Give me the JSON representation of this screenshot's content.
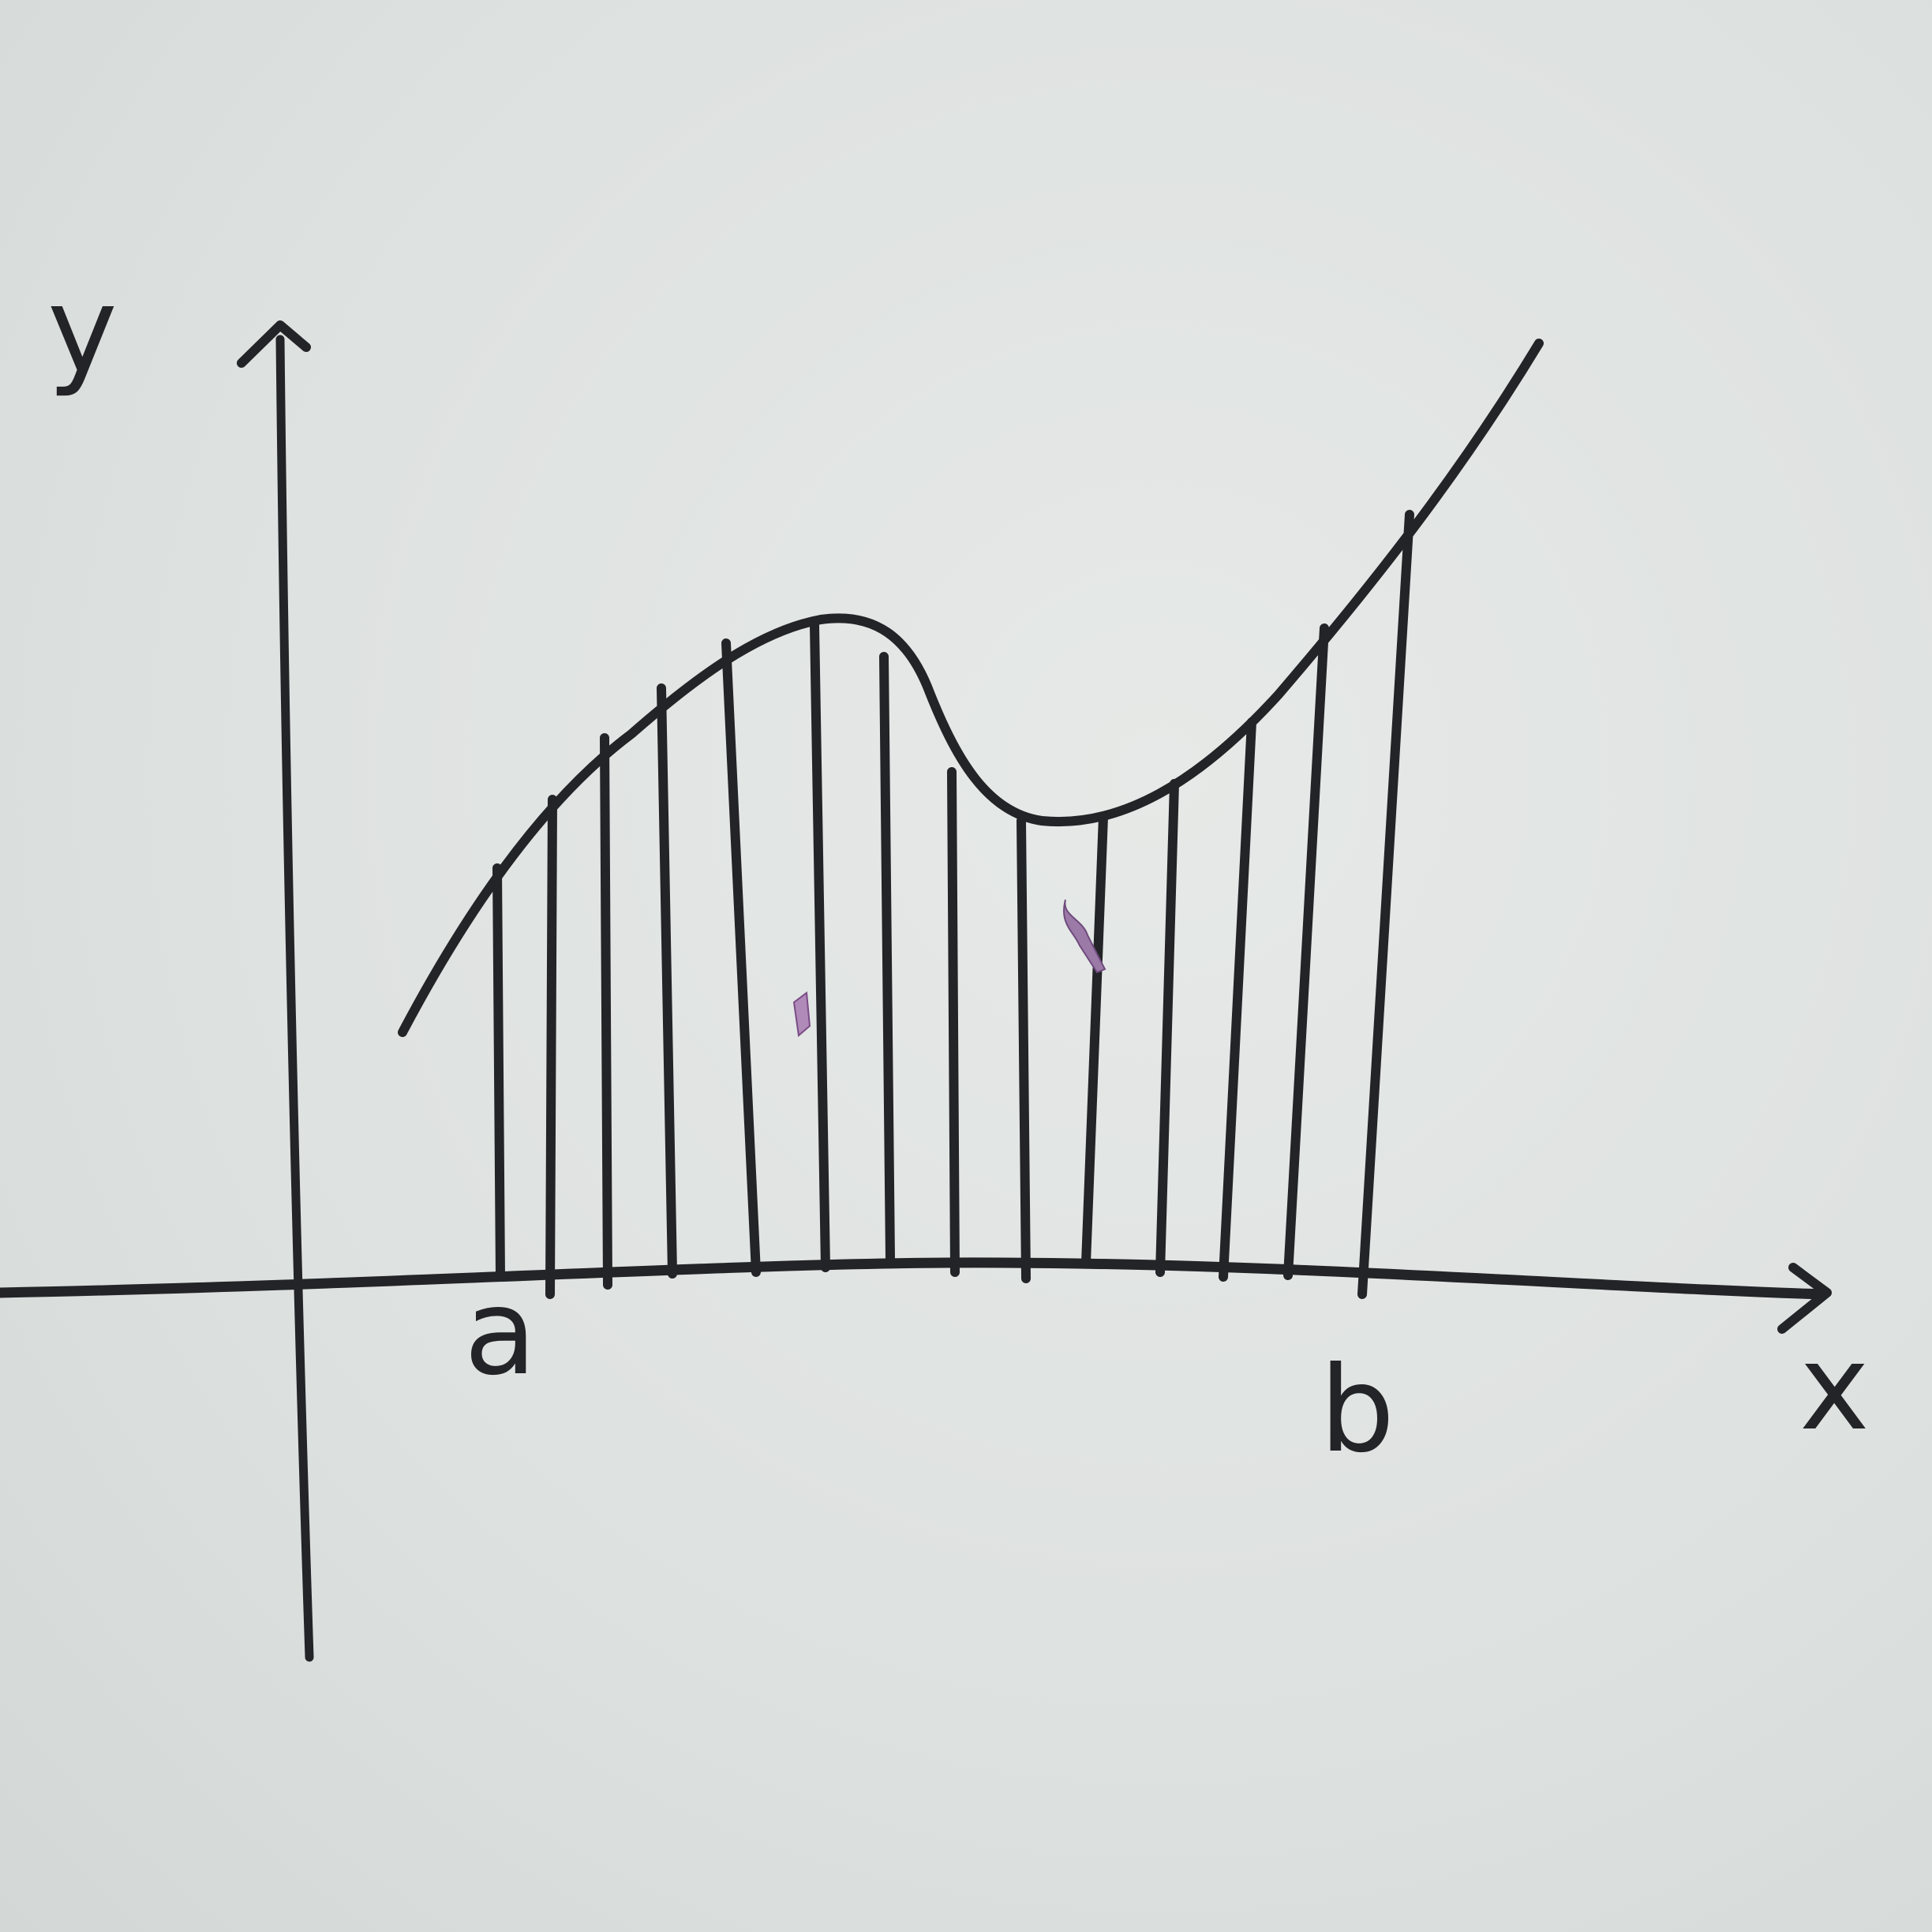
{
  "labels": {
    "y_axis": "y",
    "x_axis": "x",
    "lower_bound": "a",
    "upper_bound": "b"
  },
  "ink_color": "#232427",
  "paper_color": "#e2e5e3",
  "diagram": {
    "kind": "area under curve f(x) between a and b, filled with vertical strips",
    "strip_count": 15
  }
}
